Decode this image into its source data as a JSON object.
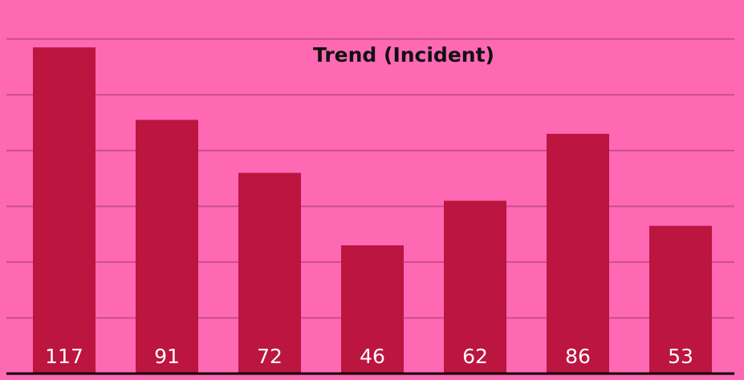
{
  "chart_data": {
    "type": "bar",
    "title": "Trend (Incident)",
    "values": [
      117,
      91,
      72,
      46,
      62,
      86,
      53
    ],
    "color": "#bb1540",
    "ylim": [
      0,
      134
    ],
    "yticks": [
      0,
      20,
      40,
      60,
      80,
      100,
      120
    ],
    "grid": true
  }
}
